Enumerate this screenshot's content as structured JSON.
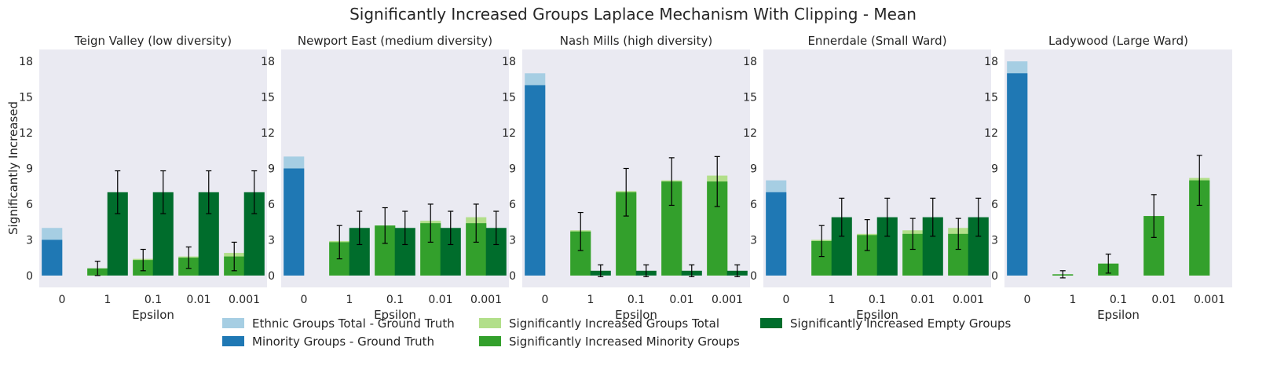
{
  "figure": {
    "title": "Significantly Increased Groups Laplace Mechanism With Clipping - Mean"
  },
  "legend": {
    "placement": "bottom-center",
    "items": [
      {
        "label": "Ethnic Groups Total - Ground Truth",
        "color": "#a6cee3"
      },
      {
        "label": "Minority Groups - Ground Truth",
        "color": "#1f78b4"
      },
      {
        "label": "Significantly Increased Groups Total",
        "color": "#b2df8a"
      },
      {
        "label": "Significantly Increased Minority Groups",
        "color": "#33a02c"
      },
      {
        "label": "Significantly Increased Empty Groups",
        "color": "#006d2c"
      }
    ]
  },
  "chart_data": [
    {
      "type": "bar",
      "title": "Teign Valley (low diversity)",
      "xlabel": "Epsilon",
      "ylabel": "Significantly Increased",
      "categories": [
        "0",
        "1",
        "0.1",
        "0.01",
        "0.001"
      ],
      "ylim": [
        -1,
        19
      ],
      "yticks": [
        0,
        3,
        6,
        9,
        12,
        15,
        18
      ],
      "grid": false,
      "ground_truth": {
        "ethnic_total": 4,
        "minority": 3
      },
      "sig_total": [
        null,
        0.6,
        1.4,
        1.6,
        1.9
      ],
      "sig_minority": {
        "values": [
          null,
          0.6,
          1.3,
          1.5,
          1.6
        ],
        "err": [
          null,
          0.6,
          0.9,
          0.9,
          1.2
        ]
      },
      "sig_empty": {
        "values": [
          null,
          7,
          7,
          7,
          7
        ],
        "err": [
          null,
          1.8,
          1.8,
          1.8,
          1.8
        ]
      }
    },
    {
      "type": "bar",
      "title": "Newport East (medium diversity)",
      "xlabel": "Epsilon",
      "ylabel": "",
      "categories": [
        "0",
        "1",
        "0.1",
        "0.01",
        "0.001"
      ],
      "ylim": [
        -1,
        19
      ],
      "yticks": [
        0,
        3,
        6,
        9,
        12,
        15,
        18
      ],
      "grid": false,
      "ground_truth": {
        "ethnic_total": 10,
        "minority": 9
      },
      "sig_total": [
        null,
        2.9,
        4.2,
        4.6,
        4.9
      ],
      "sig_minority": {
        "values": [
          null,
          2.8,
          4.2,
          4.4,
          4.4
        ],
        "err": [
          null,
          1.4,
          1.5,
          1.6,
          1.6
        ]
      },
      "sig_empty": {
        "values": [
          null,
          4,
          4,
          4,
          4
        ],
        "err": [
          null,
          1.4,
          1.4,
          1.4,
          1.4
        ]
      }
    },
    {
      "type": "bar",
      "title": "Nash Mills (high diversity)",
      "xlabel": "Epsilon",
      "ylabel": "",
      "categories": [
        "0",
        "1",
        "0.1",
        "0.01",
        "0.001"
      ],
      "ylim": [
        -1,
        19
      ],
      "yticks": [
        0,
        3,
        6,
        9,
        12,
        15,
        18
      ],
      "grid": false,
      "ground_truth": {
        "ethnic_total": 17,
        "minority": 16
      },
      "sig_total": [
        null,
        3.8,
        7.1,
        8.0,
        8.4
      ],
      "sig_minority": {
        "values": [
          null,
          3.7,
          7.0,
          7.9,
          7.9
        ],
        "err": [
          null,
          1.6,
          2.0,
          2.0,
          2.1
        ]
      },
      "sig_empty": {
        "values": [
          null,
          0.4,
          0.4,
          0.4,
          0.4
        ],
        "err": [
          null,
          0.5,
          0.5,
          0.5,
          0.5
        ]
      }
    },
    {
      "type": "bar",
      "title": "Ennerdale (Small Ward)",
      "xlabel": "Epsilon",
      "ylabel": "",
      "categories": [
        "0",
        "1",
        "0.1",
        "0.01",
        "0.001"
      ],
      "ylim": [
        -1,
        19
      ],
      "yticks": [
        0,
        3,
        6,
        9,
        12,
        15,
        18
      ],
      "grid": false,
      "ground_truth": {
        "ethnic_total": 8,
        "minority": 7
      },
      "sig_total": [
        null,
        3.0,
        3.5,
        3.8,
        4.0
      ],
      "sig_minority": {
        "values": [
          null,
          2.9,
          3.4,
          3.5,
          3.5
        ],
        "err": [
          null,
          1.3,
          1.3,
          1.3,
          1.3
        ]
      },
      "sig_empty": {
        "values": [
          null,
          4.9,
          4.9,
          4.9,
          4.9
        ],
        "err": [
          null,
          1.6,
          1.6,
          1.6,
          1.6
        ]
      }
    },
    {
      "type": "bar",
      "title": "Ladywood (Large Ward)",
      "xlabel": "Epsilon",
      "ylabel": "",
      "categories": [
        "0",
        "1",
        "0.1",
        "0.01",
        "0.001"
      ],
      "ylim": [
        -1,
        19
      ],
      "yticks": [
        0,
        3,
        6,
        9,
        12,
        15,
        18
      ],
      "grid": false,
      "ground_truth": {
        "ethnic_total": 18,
        "minority": 17
      },
      "sig_total": [
        null,
        0.1,
        1.0,
        5.0,
        8.2
      ],
      "sig_minority": {
        "values": [
          null,
          0.1,
          1.0,
          5.0,
          8.0
        ],
        "err": [
          null,
          0.3,
          0.8,
          1.8,
          2.1
        ]
      },
      "sig_empty": {
        "values": [
          null,
          0,
          0,
          0,
          0
        ],
        "err": [
          null,
          0,
          0,
          0,
          0
        ]
      }
    }
  ]
}
